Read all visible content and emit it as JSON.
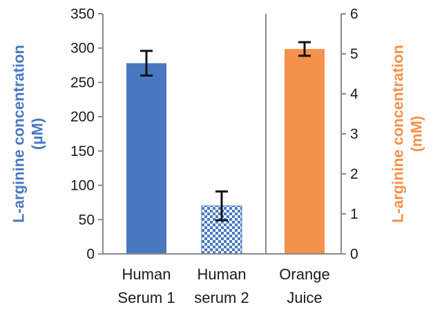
{
  "chart_data": {
    "type": "bar",
    "categories": [
      [
        "Human",
        "Serum 1"
      ],
      [
        "Human",
        "serum 2"
      ],
      [
        "Orange",
        "Juice"
      ]
    ],
    "left_axis": {
      "label_lines": [
        "L-arginine concentration",
        "(μM)"
      ],
      "ylim": [
        0,
        350
      ],
      "ticks": [
        0,
        50,
        100,
        150,
        200,
        250,
        300,
        350
      ],
      "color": "#4a78c0"
    },
    "right_axis": {
      "label_lines": [
        "L-arginine concentration",
        "(mM)"
      ],
      "ylim": [
        0,
        6
      ],
      "ticks": [
        0,
        1,
        2,
        3,
        4,
        5,
        6
      ],
      "color": "#f4914a"
    },
    "bars": [
      {
        "category_index": 0,
        "axis": "left",
        "value": 278,
        "error": 18,
        "color": "#4a78c0",
        "fill": "solid"
      },
      {
        "category_index": 1,
        "axis": "left",
        "value": 70,
        "error": 21,
        "color": "#4a78c0",
        "fill": "checkered"
      },
      {
        "category_index": 2,
        "axis": "right",
        "value": 5.12,
        "error": 0.17,
        "color": "#f4914a",
        "fill": "solid"
      }
    ],
    "separator_after_category_index": 1,
    "grid": false,
    "legend": "none"
  }
}
